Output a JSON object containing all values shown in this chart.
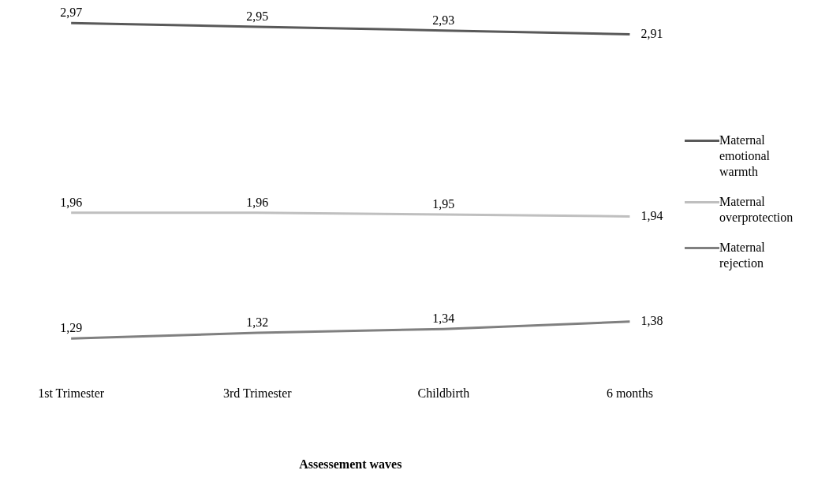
{
  "chart_data": {
    "type": "line",
    "xlabel": "Assessement waves",
    "categories": [
      "1st Trimester",
      "3rd Trimester",
      "Childbirth",
      "6 months"
    ],
    "series": [
      {
        "name": "Maternal emotional warmth",
        "color": "#595959",
        "values": [
          2.97,
          2.95,
          2.93,
          2.91
        ],
        "value_labels": [
          "2,97",
          "2,95",
          "2,93",
          "2,91"
        ]
      },
      {
        "name": "Maternal overprotection",
        "color": "#bfbfbf",
        "values": [
          1.96,
          1.96,
          1.95,
          1.94
        ],
        "value_labels": [
          "1,96",
          "1,96",
          "1,95",
          "1,94"
        ]
      },
      {
        "name": "Maternal rejection",
        "color": "#808080",
        "values": [
          1.29,
          1.32,
          1.34,
          1.38
        ],
        "value_labels": [
          "1,29",
          "1,32",
          "1,34",
          "1,38"
        ]
      }
    ],
    "legend": "right",
    "marker": "none",
    "line_style": "solid",
    "grid": false
  }
}
